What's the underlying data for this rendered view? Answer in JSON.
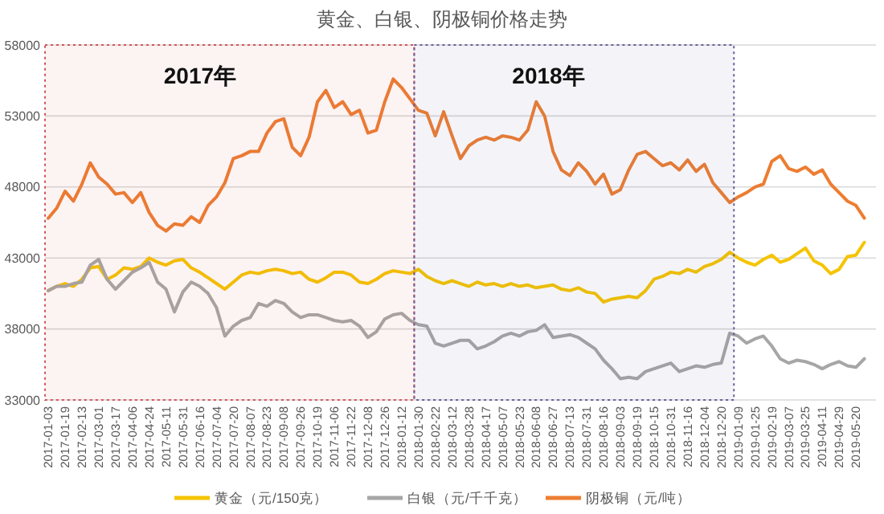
{
  "chart_data": {
    "type": "line",
    "title": "黄金、白银、阴极铜价格走势",
    "categories": [
      "2017-01-03",
      null,
      "2017-01-19",
      null,
      "2017-02-13",
      null,
      "2017-03-01",
      null,
      "2017-03-17",
      null,
      "2017-04-06",
      null,
      "2017-04-24",
      null,
      "2017-05-11",
      null,
      "2017-05-31",
      null,
      "2017-06-16",
      null,
      "2017-07-04",
      null,
      "2017-07-20",
      null,
      "2017-08-07",
      null,
      "2017-08-23",
      null,
      "2017-09-08",
      null,
      "2017-09-26",
      null,
      "2017-10-19",
      null,
      "2017-11-06",
      null,
      "2017-11-22",
      null,
      "2017-12-08",
      null,
      "2017-12-26",
      null,
      "2018-01-12",
      null,
      "2018-01-30",
      null,
      "2018-02-22",
      null,
      "2018-03-12",
      null,
      "2018-03-28",
      null,
      "2018-04-17",
      null,
      "2018-05-07",
      null,
      "2018-05-23",
      null,
      "2018-06-08",
      null,
      "2018-06-27",
      null,
      "2018-07-13",
      null,
      "2018-07-31",
      null,
      "2018-08-16",
      null,
      "2018-09-03",
      null,
      "2018-09-19",
      null,
      "2018-10-15",
      null,
      "2018-10-31",
      null,
      "2018-11-16",
      null,
      "2018-12-04",
      null,
      "2018-12-20",
      null,
      "2019-01-09",
      null,
      "2019-01-25",
      null,
      "2019-02-19",
      null,
      "2019-03-07",
      null,
      "2019-03-25",
      null,
      "2019-04-11",
      null,
      "2019-04-29",
      null,
      "2019-05-20",
      null,
      null
    ],
    "series": [
      {
        "name": "黄金（元/150克）",
        "color": "#f5c400",
        "values": [
          40700,
          41000,
          41200,
          41000,
          41500,
          42300,
          42400,
          41500,
          41800,
          42300,
          42200,
          42400,
          43000,
          42700,
          42500,
          42800,
          42900,
          42300,
          42000,
          41600,
          41200,
          40800,
          41300,
          41800,
          42000,
          41900,
          42100,
          42200,
          42100,
          41900,
          42000,
          41500,
          41300,
          41600,
          42000,
          42000,
          41800,
          41300,
          41200,
          41500,
          41900,
          42100,
          42000,
          41900,
          42200,
          41700,
          41400,
          41200,
          41400,
          41200,
          41000,
          41300,
          41100,
          41200,
          41000,
          41200,
          41000,
          41100,
          40900,
          41000,
          41100,
          40800,
          40700,
          40900,
          40600,
          40500,
          39900,
          40100,
          40200,
          40300,
          40200,
          40700,
          41500,
          41700,
          42000,
          41900,
          42200,
          42000,
          42400,
          42600,
          42900,
          43400,
          43000,
          42700,
          42500,
          42900,
          43200,
          42700,
          42900,
          43300,
          43700,
          42800,
          42500,
          41900,
          42200,
          43100,
          43200,
          44100,
          null
        ]
      },
      {
        "name": "白银（元/千千克）",
        "color": "#a6a6a6",
        "values": [
          40700,
          41000,
          41000,
          41200,
          41300,
          42500,
          42900,
          41500,
          40800,
          41400,
          42000,
          42300,
          42700,
          41300,
          40800,
          39200,
          40600,
          41300,
          41000,
          40500,
          39500,
          37500,
          38200,
          38600,
          38800,
          39800,
          39600,
          40000,
          39800,
          39200,
          38800,
          39000,
          39000,
          38800,
          38600,
          38500,
          38600,
          38200,
          37400,
          37800,
          38700,
          39000,
          39100,
          38600,
          38300,
          38200,
          37000,
          36800,
          37000,
          37200,
          37200,
          36600,
          36800,
          37100,
          37500,
          37700,
          37500,
          37800,
          37900,
          38300,
          37400,
          37500,
          37600,
          37400,
          37000,
          36600,
          35800,
          35200,
          34500,
          34600,
          34500,
          35000,
          35200,
          35400,
          35600,
          35000,
          35200,
          35400,
          35300,
          35500,
          35600,
          37700,
          37500,
          37000,
          37300,
          37500,
          36800,
          35900,
          35600,
          35800,
          35700,
          35500,
          35200,
          35500,
          35700,
          35400,
          35300,
          35900,
          null
        ]
      },
      {
        "name": "阴极铜（元/吨）",
        "color": "#ed7d31",
        "values": [
          45800,
          46500,
          47700,
          47000,
          48200,
          49700,
          48700,
          48200,
          47500,
          47600,
          46900,
          47600,
          46200,
          45300,
          44900,
          45400,
          45300,
          45900,
          45500,
          46700,
          47300,
          48300,
          50000,
          50200,
          50500,
          50500,
          51800,
          52600,
          52800,
          50800,
          50200,
          51500,
          54000,
          54800,
          53600,
          54000,
          53100,
          53400,
          51800,
          52000,
          54000,
          55600,
          55000,
          54200,
          53400,
          53200,
          51600,
          53300,
          51600,
          50000,
          50900,
          51300,
          51500,
          51300,
          51600,
          51500,
          51300,
          52000,
          54000,
          53000,
          50500,
          49200,
          48800,
          49700,
          49100,
          48200,
          48900,
          47500,
          47800,
          49200,
          50300,
          50500,
          50000,
          49500,
          49700,
          49200,
          49900,
          49100,
          49600,
          48300,
          47600,
          46900,
          47300,
          47600,
          48000,
          48200,
          49800,
          50200,
          49300,
          49100,
          49400,
          48900,
          49200,
          48200,
          47600,
          47000,
          46700,
          45800,
          null
        ]
      }
    ],
    "ylim": [
      33000,
      58000
    ],
    "yticks": [
      33000,
      38000,
      43000,
      48000,
      53000,
      58000
    ],
    "grid": "y",
    "legend": "bottom",
    "line_style": "solid",
    "marker": "none",
    "bands": [
      {
        "axis": "x",
        "from": "2017-01-03",
        "to": "2018-01-30",
        "label": "2017年",
        "color": "#d0575a"
      },
      {
        "axis": "x",
        "from": "2018-01-30",
        "to": "2019-01-09",
        "label": "2018年",
        "color": "#6a5f9a"
      }
    ]
  }
}
